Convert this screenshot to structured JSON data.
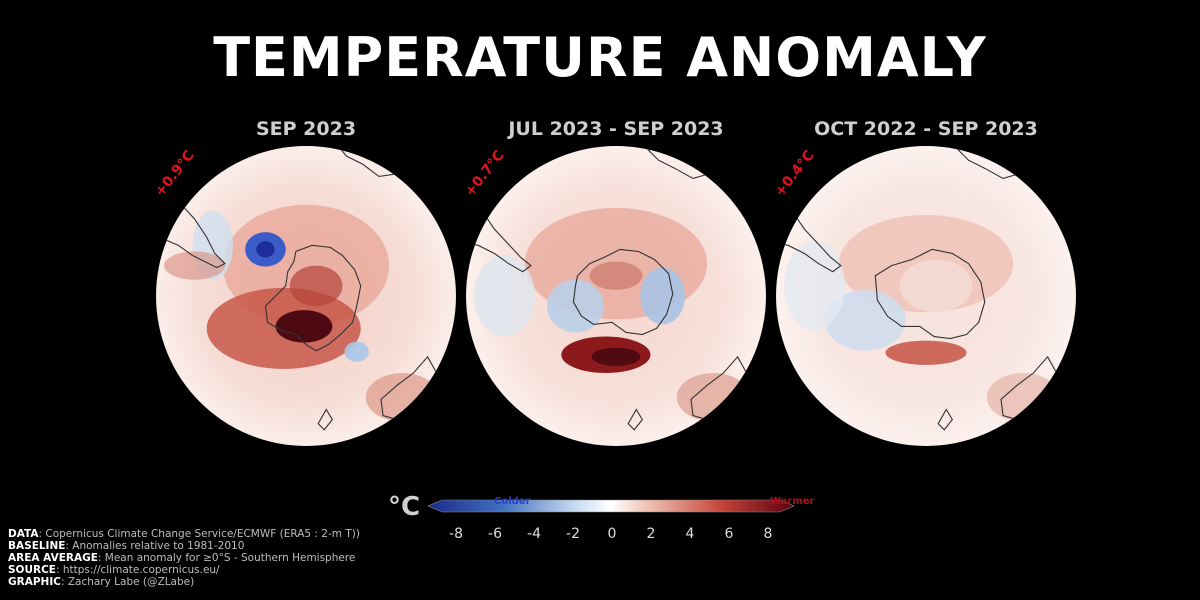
{
  "title": "TEMPERATURE ANOMALY",
  "panels": [
    {
      "label": "SEP 2023",
      "anomaly": "+0.9°C",
      "intensity": 1.0
    },
    {
      "label": "JUL 2023 - SEP 2023",
      "anomaly": "+0.7°C",
      "intensity": 0.75
    },
    {
      "label": "OCT 2022 - SEP 2023",
      "anomaly": "+0.4°C",
      "intensity": 0.45
    }
  ],
  "legend": {
    "unit": "°C",
    "colder_label": "Colder",
    "warmer_label": "Warmer",
    "ticks": [
      "-8",
      "-6",
      "-4",
      "-2",
      "0",
      "2",
      "4",
      "6",
      "8"
    ],
    "range": [
      -8,
      8
    ],
    "colors": {
      "cold": "#1c2a8c",
      "neutral": "#ffffff",
      "warm": "#5a0010"
    }
  },
  "credits": {
    "data_key": "DATA",
    "data_val": ": Copernicus Climate Change Service/ECMWF (ERA5 : 2-m T))",
    "baseline_key": "BASELINE",
    "baseline_val": ": Anomalies relative to 1981-2010",
    "area_key": "AREA AVERAGE",
    "area_val": ": Mean anomaly for ≥0°S - Southern Hemisphere",
    "source_key": "SOURCE",
    "source_val": ": https://climate.copernicus.eu/",
    "graphic_key": "GRAPHIC",
    "graphic_val": ": Zachary Labe (@ZLabe)"
  }
}
